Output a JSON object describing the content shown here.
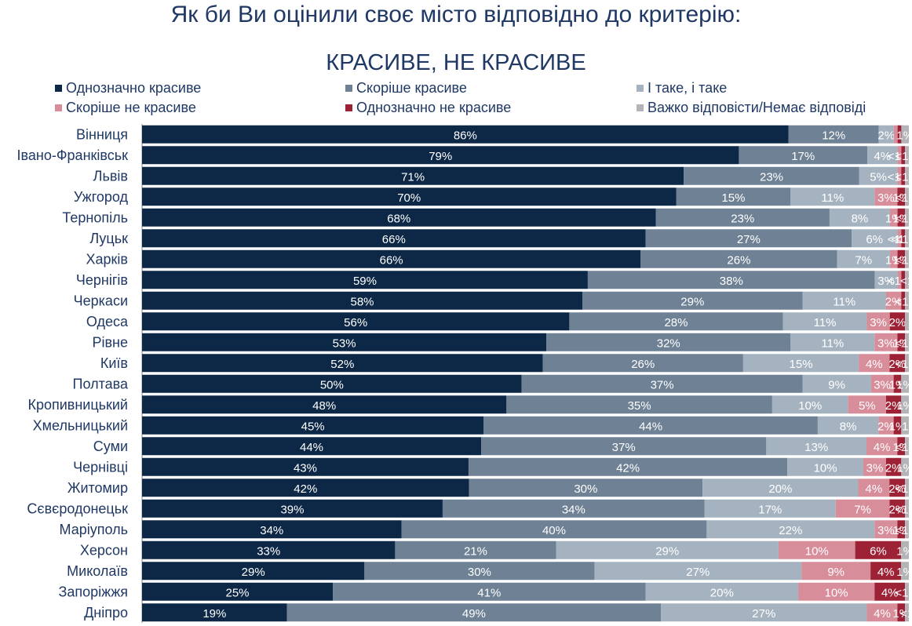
{
  "title": "Як би Ви оцінили своє місто відповідно до критерію:",
  "subtitle": "КРАСИВЕ, НЕ КРАСИВЕ",
  "chart_data": {
    "type": "bar",
    "orientation": "horizontal",
    "stacked": true,
    "xlim": [
      0,
      100
    ],
    "categories": [
      "Вінниця",
      "Івано-Франківськ",
      "Львів",
      "Ужгород",
      "Тернопіль",
      "Луцьк",
      "Харків",
      "Чернігів",
      "Черкаси",
      "Одеса",
      "Рівне",
      "Київ",
      "Полтава",
      "Кропивницький",
      "Хмельницький",
      "Суми",
      "Чернівці",
      "Житомир",
      "Сєвєродонецьк",
      "Маріуполь",
      "Херсон",
      "Миколаїв",
      "Запоріжжя",
      "Дніпро"
    ],
    "series": [
      {
        "name": "Однозначно красиве",
        "color": "#0d2847",
        "values": [
          86,
          79,
          71,
          70,
          68,
          66,
          66,
          59,
          58,
          56,
          53,
          52,
          50,
          48,
          45,
          44,
          43,
          42,
          39,
          34,
          33,
          29,
          25,
          19
        ],
        "labels": [
          "86%",
          "79%",
          "71%",
          "70%",
          "68%",
          "66%",
          "66%",
          "59%",
          "58%",
          "56%",
          "53%",
          "52%",
          "50%",
          "48%",
          "45%",
          "44%",
          "43%",
          "42%",
          "39%",
          "34%",
          "33%",
          "29%",
          "25%",
          "19%"
        ]
      },
      {
        "name": "Скоріше красиве",
        "color": "#6e8195",
        "values": [
          12,
          17,
          23,
          15,
          23,
          27,
          26,
          38,
          29,
          28,
          32,
          26,
          37,
          35,
          44,
          37,
          42,
          30,
          34,
          40,
          21,
          30,
          41,
          49
        ],
        "labels": [
          "12%",
          "17%",
          "23%",
          "15%",
          "23%",
          "27%",
          "26%",
          "38%",
          "29%",
          "28%",
          "32%",
          "26%",
          "37%",
          "35%",
          "44%",
          "37%",
          "42%",
          "30%",
          "34%",
          "40%",
          "21%",
          "30%",
          "41%",
          "49%"
        ]
      },
      {
        "name": "І таке, і таке",
        "color": "#a5b3c1",
        "values": [
          2,
          4,
          5,
          11,
          8,
          6,
          7,
          3,
          11,
          11,
          11,
          15,
          9,
          10,
          8,
          13,
          10,
          20,
          17,
          22,
          29,
          27,
          20,
          27
        ],
        "labels": [
          "2%",
          "4%",
          "5%",
          "11%",
          "8%",
          "6%",
          "7%",
          "3%",
          "11%",
          "11%",
          "11%",
          "15%",
          "9%",
          "10%",
          "8%",
          "13%",
          "10%",
          "20%",
          "17%",
          "22%",
          "29%",
          "27%",
          "20%",
          "27%"
        ]
      },
      {
        "name": "Скоріше не красиве",
        "color": "#d78d9a",
        "values": [
          0.5,
          0.5,
          0.5,
          3,
          1,
          0.5,
          1,
          0.5,
          2,
          3,
          3,
          4,
          3,
          5,
          2,
          4,
          3,
          4,
          7,
          3,
          10,
          9,
          10,
          4
        ],
        "labels": [
          "",
          "<1%",
          "<1%",
          "3%",
          "1%",
          "<1%",
          "1%",
          "<1%",
          "2%",
          "3%",
          "3%",
          "4%",
          "3%",
          "5%",
          "2%",
          "4%",
          "3%",
          "4%",
          "7%",
          "3%",
          "10%",
          "9%",
          "10%",
          "4%"
        ]
      },
      {
        "name": "Однозначно не красиве",
        "color": "#9e2235",
        "values": [
          0.5,
          0.5,
          0.5,
          1,
          1,
          0.5,
          1,
          0.5,
          0.5,
          2,
          1,
          2,
          1,
          2,
          1,
          1,
          2,
          2,
          2,
          1,
          6,
          4,
          4,
          1
        ],
        "labels": [
          "",
          "",
          "",
          "1%",
          "1%",
          "<1%",
          "1%",
          "",
          "",
          "2%",
          "1%",
          "2%",
          "1%",
          "2%",
          "1%",
          "1%",
          "2%",
          "2%",
          "2%",
          "1%",
          "6%",
          "4%",
          "4%",
          "1%"
        ]
      },
      {
        "name": "Важко відповісти/Немає відповіді",
        "color": "#b4b4b8",
        "values": [
          1,
          0.5,
          0.5,
          0.5,
          0.5,
          0.5,
          0.5,
          0.5,
          0.5,
          0.5,
          0.5,
          0.5,
          1,
          1,
          1,
          0.5,
          1,
          0.5,
          0.5,
          0.5,
          1,
          1,
          0.5,
          0.5
        ],
        "labels": [
          "1%",
          "<1%",
          "<1%",
          "<1%",
          "<1%",
          "<1%",
          "<1%",
          "<1",
          "<1%",
          "",
          "<1%",
          "<1%",
          "1%",
          "1%",
          "1",
          "<1%",
          "1%",
          "<1%",
          "<1%",
          "<1%",
          "1%",
          "1%",
          "<1%",
          "<1"
        ]
      }
    ]
  },
  "legend_layout": [
    {
      "series": 0
    },
    {
      "series": 1
    },
    {
      "series": 2
    },
    {
      "series": 3
    },
    {
      "series": 4
    },
    {
      "series": 5
    }
  ]
}
